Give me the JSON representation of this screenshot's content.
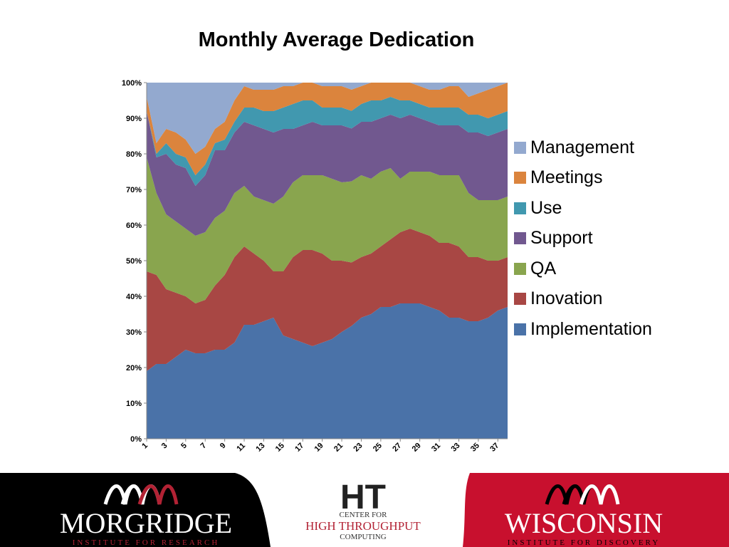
{
  "chart_data": {
    "type": "area",
    "stacked": "percent",
    "title": "Monthly Average Dedication",
    "x": [
      1,
      2,
      3,
      4,
      5,
      6,
      7,
      8,
      9,
      10,
      11,
      12,
      13,
      14,
      15,
      16,
      17,
      18,
      19,
      20,
      21,
      22,
      23,
      24,
      25,
      26,
      27,
      28,
      29,
      30,
      31,
      32,
      33,
      34,
      35,
      36,
      37,
      38
    ],
    "xticks": [
      "1",
      "3",
      "5",
      "7",
      "9",
      "11",
      "13",
      "15",
      "17",
      "19",
      "21",
      "23",
      "25",
      "27",
      "29",
      "31",
      "33",
      "35",
      "37"
    ],
    "yticks": [
      "0%",
      "10%",
      "20%",
      "30%",
      "40%",
      "50%",
      "60%",
      "70%",
      "80%",
      "90%",
      "100%"
    ],
    "ylim": [
      0,
      100
    ],
    "legend_position": "right",
    "series": [
      {
        "name": "Implementation",
        "color": "#4a72a8",
        "values": [
          19,
          21,
          21,
          23,
          25,
          24,
          24,
          25,
          25,
          27,
          32,
          32,
          33,
          34,
          29,
          28,
          27,
          26,
          27,
          28,
          30,
          32,
          34,
          35,
          37,
          37,
          38,
          38,
          38,
          37,
          36,
          34,
          34,
          33,
          33,
          34,
          36,
          37
        ]
      },
      {
        "name": "Inovation",
        "color": "#a84744",
        "values": [
          28,
          25,
          21,
          18,
          15,
          14,
          15,
          18,
          21,
          24,
          22,
          20,
          17,
          13,
          18,
          23,
          26,
          27,
          25,
          22,
          20,
          18,
          17,
          17,
          17,
          19,
          20,
          21,
          20,
          20,
          19,
          21,
          20,
          18,
          18,
          16,
          14,
          14
        ]
      },
      {
        "name": "QA",
        "color": "#89a54e",
        "values": [
          32,
          23,
          21,
          20,
          19,
          19,
          19,
          19,
          18,
          18,
          17,
          16,
          17,
          19,
          21,
          21,
          21,
          21,
          22,
          23,
          22,
          23,
          23,
          21,
          21,
          20,
          15,
          16,
          17,
          18,
          19,
          19,
          20,
          18,
          16,
          17,
          17,
          17
        ]
      },
      {
        "name": "Support",
        "color": "#71588f",
        "values": [
          13,
          10,
          17,
          16,
          17,
          14,
          16,
          19,
          17,
          17,
          18,
          20,
          20,
          20,
          19,
          15,
          14,
          15,
          14,
          15,
          16,
          15,
          15,
          16,
          15,
          15,
          17,
          16,
          15,
          14,
          14,
          14,
          14,
          17,
          19,
          18,
          19,
          19
        ]
      },
      {
        "name": "Use",
        "color": "#4198af",
        "values": [
          0,
          1,
          3,
          3,
          3,
          3,
          3,
          2,
          3,
          3,
          4,
          5,
          5,
          6,
          6,
          7,
          7,
          6,
          5,
          5,
          5,
          5,
          5,
          6,
          5,
          5,
          5,
          4,
          4,
          4,
          5,
          5,
          5,
          5,
          5,
          5,
          5,
          5
        ]
      },
      {
        "name": "Meetings",
        "color": "#db843d",
        "values": [
          4,
          3,
          4,
          6,
          5,
          6,
          5,
          4,
          5,
          6,
          6,
          5,
          6,
          6,
          6,
          5,
          5,
          5,
          6,
          6,
          6,
          6,
          5,
          5,
          5,
          4,
          5,
          5,
          5,
          5,
          5,
          6,
          6,
          5,
          6,
          8,
          8,
          8
        ]
      },
      {
        "name": "Management",
        "color": "#93a9cf",
        "values": [
          4,
          17,
          13,
          14,
          16,
          20,
          18,
          13,
          11,
          5,
          1,
          2,
          2,
          2,
          1,
          1,
          0,
          0,
          1,
          1,
          1,
          2,
          1,
          0,
          0,
          0,
          0,
          0,
          1,
          2,
          2,
          1,
          1,
          4,
          3,
          2,
          1,
          0
        ]
      }
    ]
  },
  "footer": {
    "left_logo_name": "MORGRIDGE",
    "left_logo_sub": "INSTITUTE FOR RESEARCH",
    "center_logo_mark": "HT",
    "center_logo_line1": "CENTER FOR",
    "center_logo_line2": "HIGH THROUGHPUT",
    "center_logo_line3": "COMPUTING",
    "right_logo_name": "WISCONSIN",
    "right_logo_sub": "INSTITUTE FOR DISCOVERY"
  }
}
